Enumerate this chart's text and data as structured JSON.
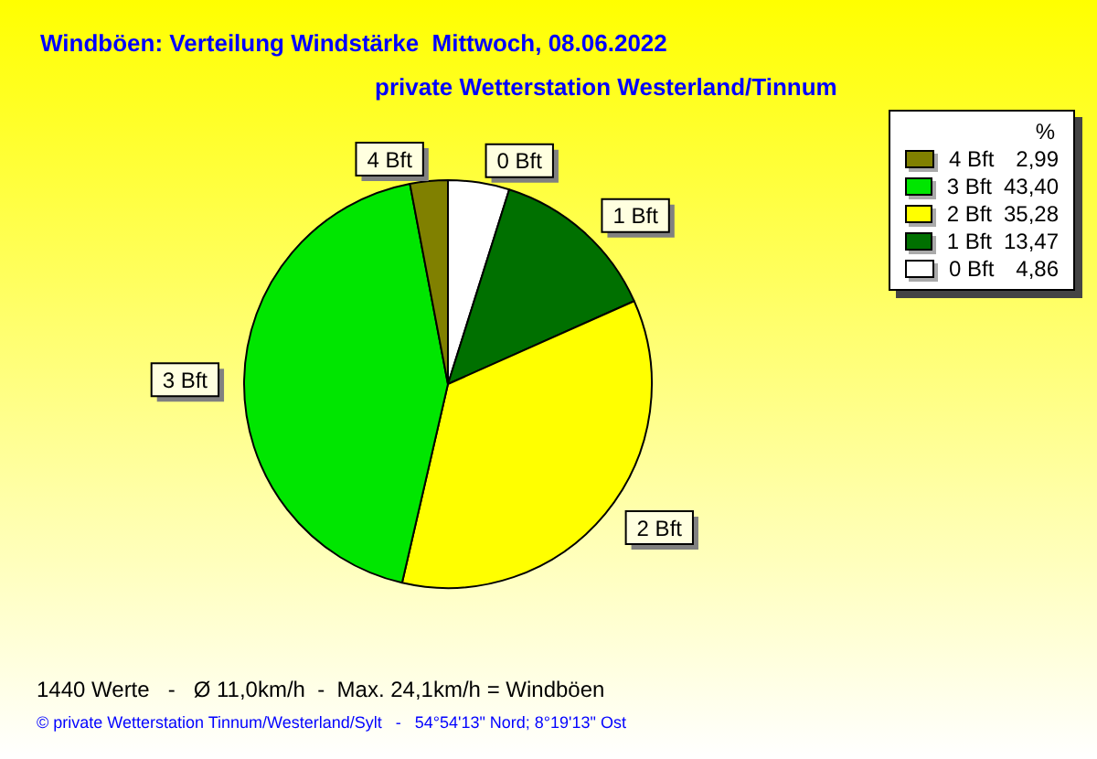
{
  "chart_data": {
    "type": "pie",
    "title": "Windböen: Verteilung Windstärke  Mittwoch, 08.06.2022",
    "subtitle": "private Wetterstation Westerland/Tinnum",
    "categories": [
      "0 Bft",
      "1 Bft",
      "2 Bft",
      "3 Bft",
      "4 Bft"
    ],
    "values": [
      4.86,
      13.47,
      35.28,
      43.4,
      2.99
    ],
    "value_labels": [
      "4,86",
      "13,47",
      "35,28",
      "43,40",
      "2,99"
    ],
    "colors": [
      "#ffffff",
      "#007000",
      "#ffff00",
      "#00e600",
      "#808000"
    ],
    "legend": "top right",
    "legend_title": "%",
    "annotations": [
      "1440 Werte   -   Ø 11,0km/h  -  Max. 24,1km/h = Windböen",
      "© private Wetterstation Tinnum/Westerland/Sylt   -   54°54'13\" Nord; 8°19'13\" Ost"
    ]
  }
}
